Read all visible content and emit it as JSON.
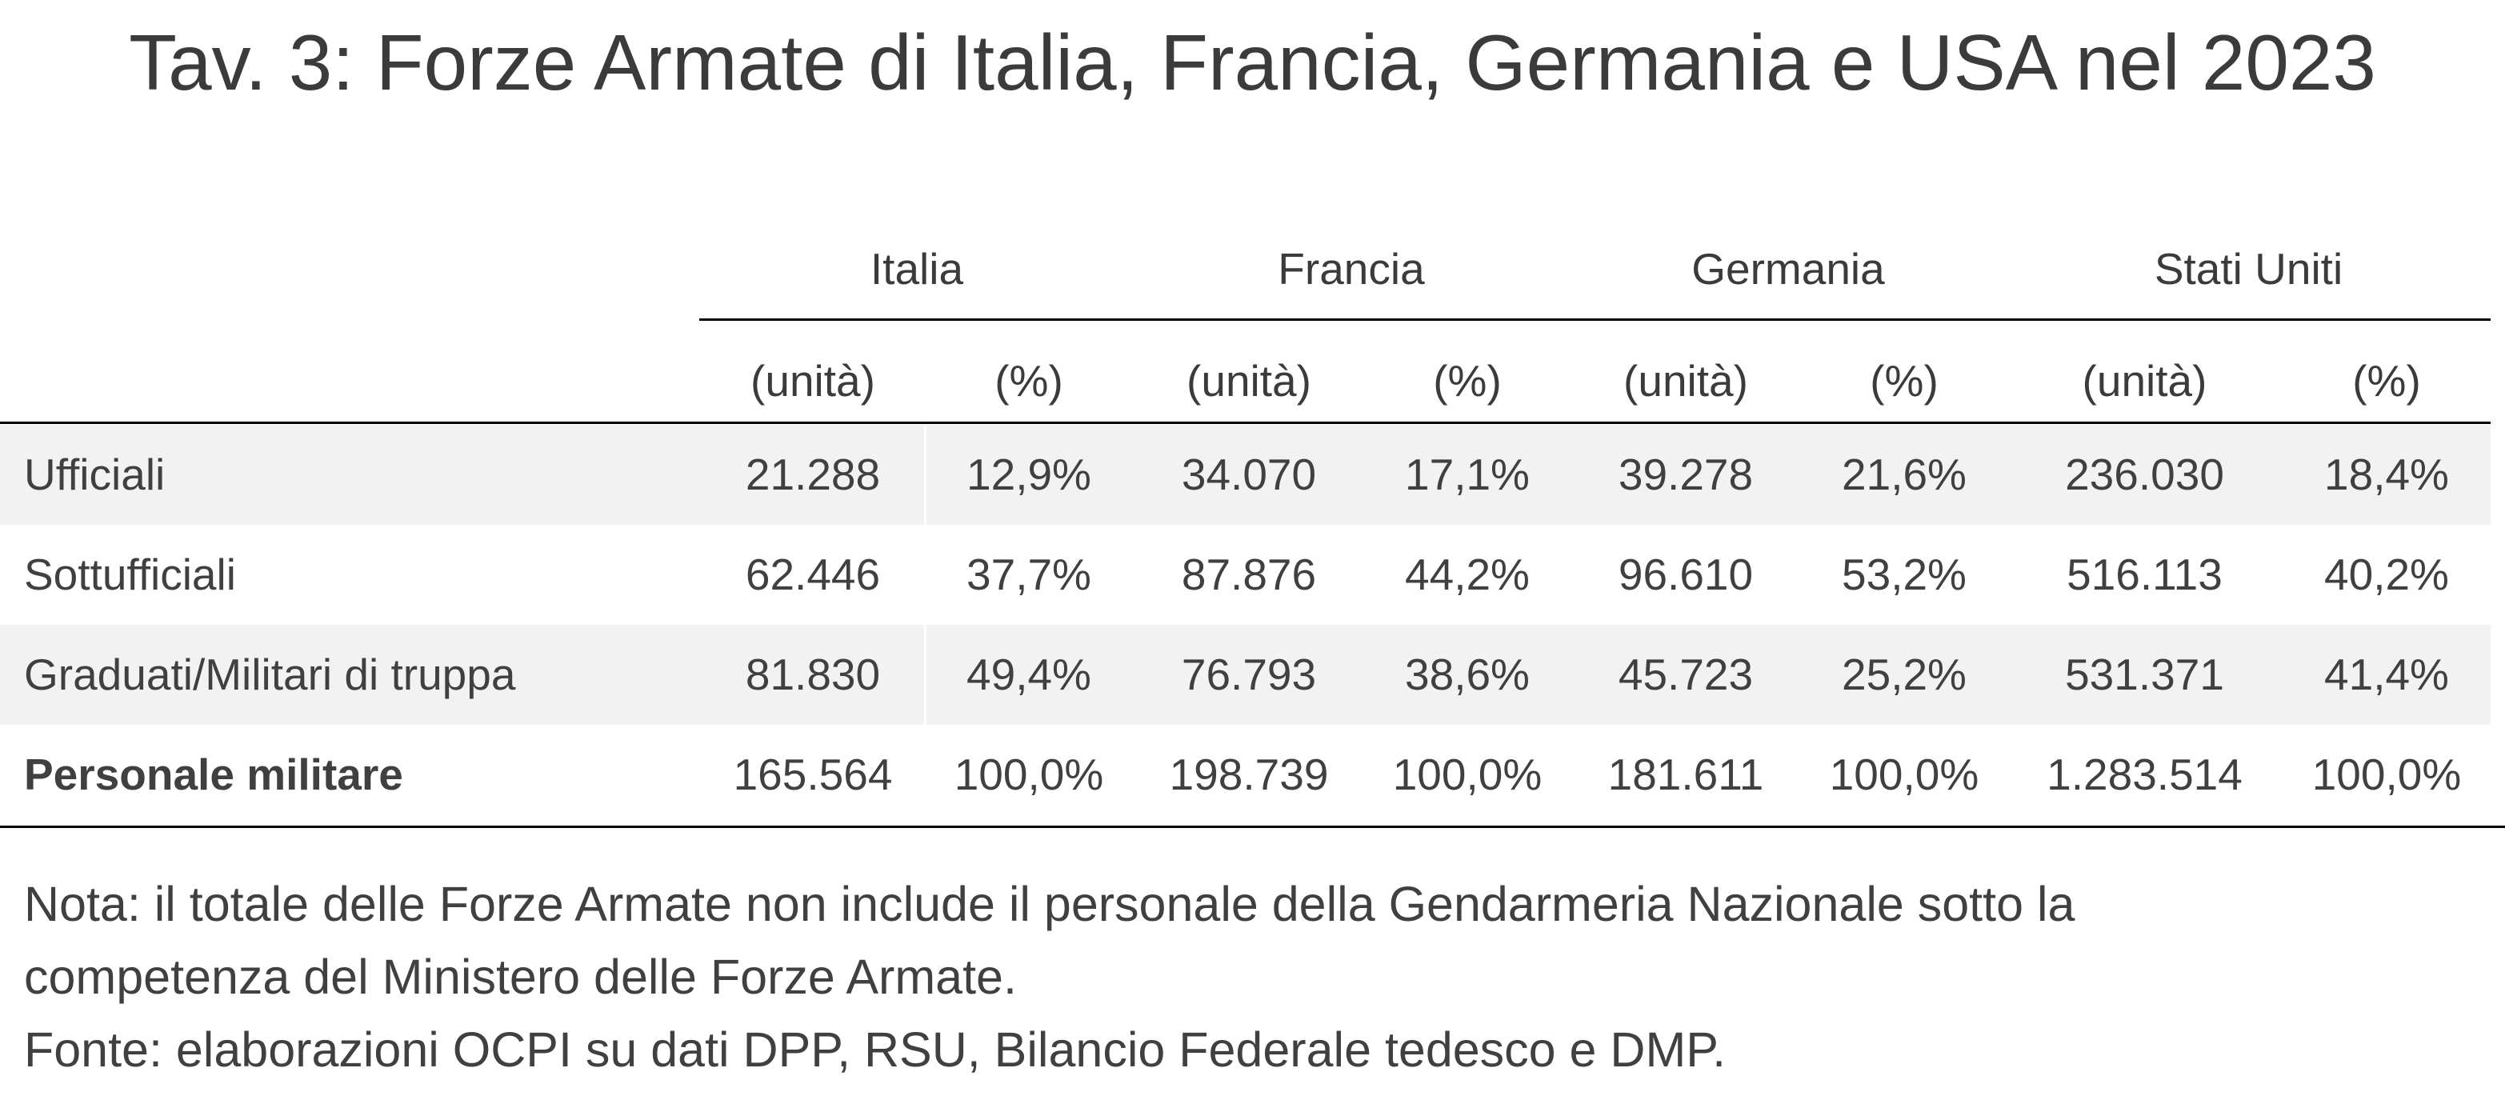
{
  "title": "Tav. 3: Forze Armate di Italia, Francia, Germania e USA nel 2023",
  "chart_data": {
    "type": "table",
    "title": "Tav. 3: Forze Armate di Italia, Francia, Germania e USA nel 2023",
    "countries": [
      "Italia",
      "Francia",
      "Germania",
      "Stati Uniti"
    ],
    "subheaders": [
      "(unità)",
      "(%)",
      "(unità)",
      "(%)",
      "(unità)",
      "(%)",
      "(unità)",
      "(%)"
    ],
    "rows": [
      {
        "label": "Ufficiali",
        "cells": [
          "21.288",
          "12,9%",
          "34.070",
          "17,1%",
          "39.278",
          "21,6%",
          "236.030",
          "18,4%"
        ]
      },
      {
        "label": "Sottufficiali",
        "cells": [
          "62.446",
          "37,7%",
          "87.876",
          "44,2%",
          "96.610",
          "53,2%",
          "516.113",
          "40,2%"
        ]
      },
      {
        "label": "Graduati/Militari di truppa",
        "cells": [
          "81.830",
          "49,4%",
          "76.793",
          "38,6%",
          "45.723",
          "25,2%",
          "531.371",
          "41,4%"
        ]
      },
      {
        "label": "Personale militare",
        "cells": [
          "165.564",
          "100,0%",
          "198.739",
          "100,0%",
          "181.611",
          "100,0%",
          "1.283.514",
          "100,0%"
        ]
      }
    ]
  },
  "notes": [
    "Nota: il totale delle Forze Armate non include il personale della Gendarmeria Nazionale sotto la",
    "competenza del Ministero delle Forze Armate.",
    "Fonte: elaborazioni OCPI su dati DPP, RSU, Bilancio Federale tedesco e DMP."
  ],
  "colors": {
    "text": "#404040",
    "title": "#3b3b3b",
    "row_shade": "#f2f2f2",
    "rule": "#000000"
  }
}
